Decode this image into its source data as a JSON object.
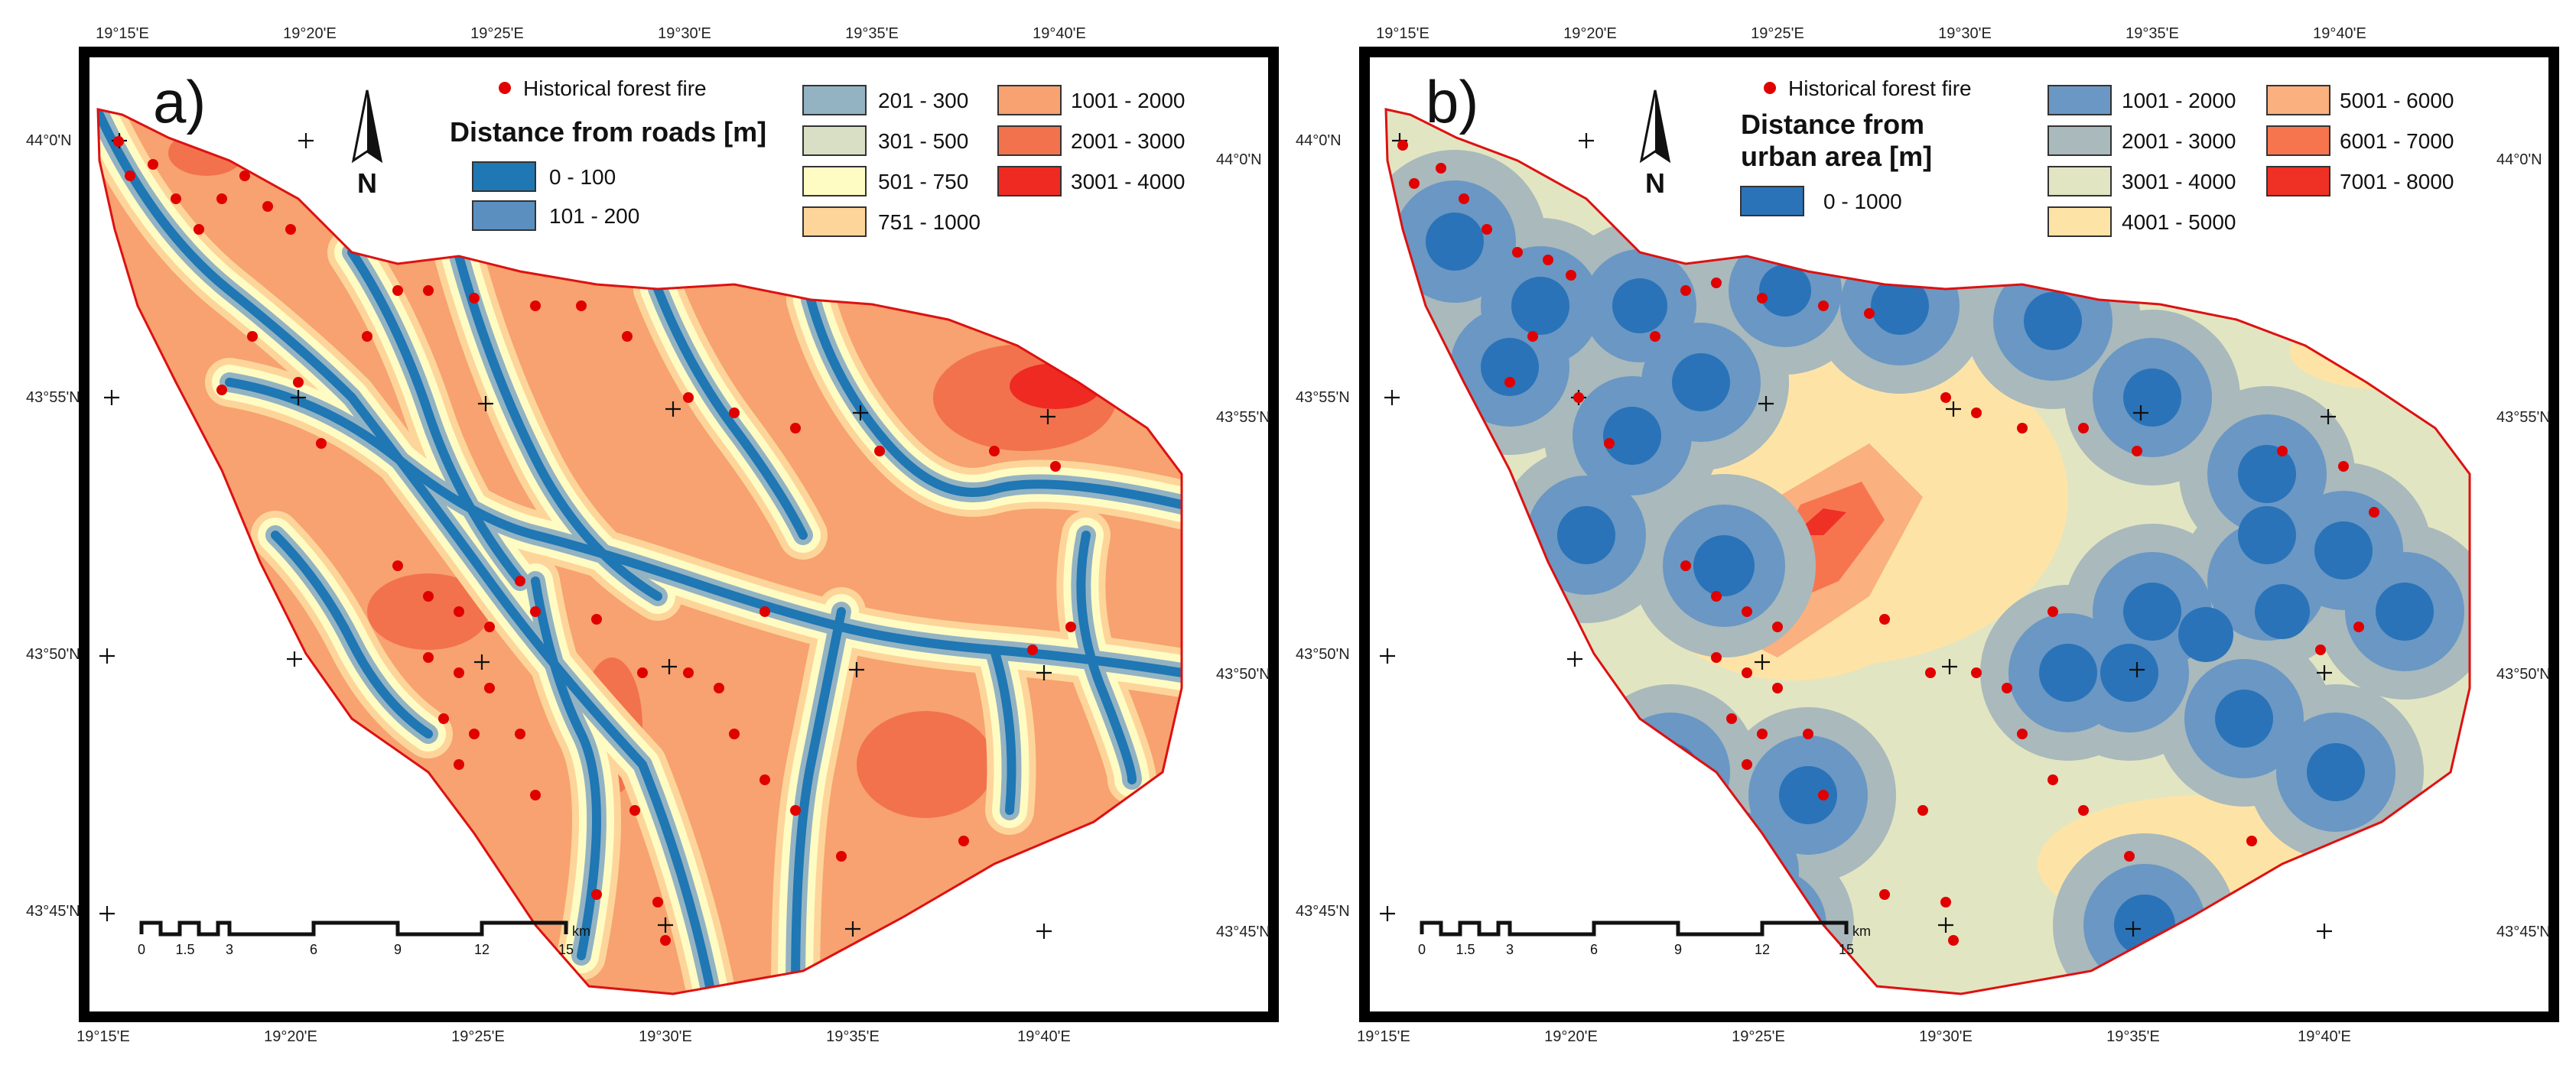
{
  "colors": {
    "road_0_100": "#1f77b4",
    "road_101_200": "#5b8fc0",
    "road_201_300": "#93b3c3",
    "road_301_500": "#d9dfc4",
    "road_501_750": "#fffcc3",
    "road_751_1000": "#fdd59a",
    "road_1001_2000": "#f7a270",
    "road_2001_3000": "#f2724d",
    "road_3001_4000": "#ee2a22",
    "urb_0_1000": "#2a73b8",
    "urb_1001_2000": "#6a97c4",
    "urb_2001_3000": "#a9b9bc",
    "urb_3001_4000": "#e2e5c2",
    "urb_4001_5000": "#fde4a6",
    "urb_5001_6000": "#fab07f",
    "urb_6001_7000": "#f6754f",
    "urb_7001_8000": "#ee3025",
    "fire": "#e00000",
    "boundary": "#dd1111"
  },
  "panel_a": {
    "label": "a)",
    "legend_title": "Distance from roads [m]",
    "fire_label": "Historical forest fire",
    "classes": [
      "0 - 100",
      "101 - 200",
      "201 - 300",
      "301 - 500",
      "501 - 750",
      "751 - 1000",
      "1001 - 2000",
      "2001 - 3000",
      "3001 - 4000"
    ]
  },
  "panel_b": {
    "label": "b)",
    "legend_title_line1": "Distance from",
    "legend_title_line2": "urban area [m]",
    "fire_label": "Historical forest fire",
    "classes": [
      "0 - 1000",
      "1001 - 2000",
      "2001 - 3000",
      "3001 - 4000",
      "4001 - 5000",
      "5001 - 6000",
      "6001 - 7000",
      "7001 - 8000"
    ]
  },
  "north_label": "N",
  "scalebar": {
    "labels": [
      "0",
      "1.5",
      "3",
      "6",
      "9",
      "12",
      "15"
    ],
    "unit": "km"
  },
  "axes": {
    "lon_labels": [
      "19°15'E",
      "19°20'E",
      "19°25'E",
      "19°30'E",
      "19°35'E",
      "19°40'E"
    ],
    "lat_left": [
      "44°0'N",
      "43°55'N",
      "43°50'N",
      "43°45'N"
    ],
    "lat_right": [
      "44°0'N",
      "43°55'N",
      "43°50'N",
      "43°45'N"
    ]
  }
}
